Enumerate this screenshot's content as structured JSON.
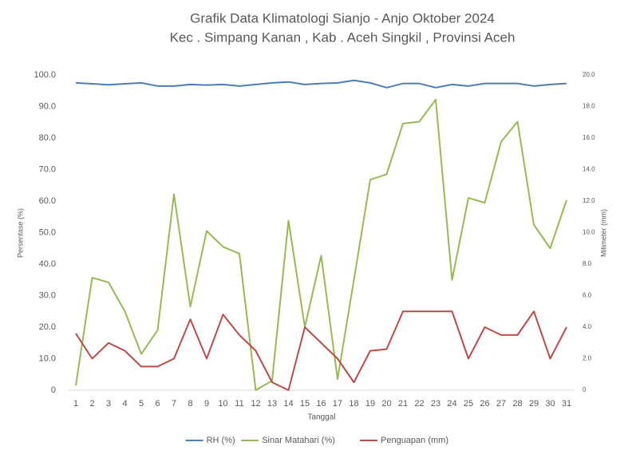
{
  "chart_data": {
    "type": "line",
    "title": "Grafik Data Klimatologi Sianjo - Anjo Oktober 2024",
    "subtitle": "Kec . Simpang Kanan , Kab . Aceh Singkil , Provinsi  Aceh",
    "x_label": "Tanggal",
    "y_label": "Persentase (%)",
    "y2_label": "Milimeter (mm)",
    "categories": [
      "1",
      "2",
      "3",
      "4",
      "5",
      "6",
      "7",
      "8",
      "9",
      "10",
      "11",
      "12",
      "13",
      "14",
      "15",
      "16",
      "17",
      "18",
      "19",
      "20",
      "21",
      "22",
      "23",
      "24",
      "25",
      "26",
      "27",
      "28",
      "29",
      "30",
      "31"
    ],
    "ylim": [
      0,
      100
    ],
    "yticks": [
      0,
      {
        "value": 10,
        "label": "10.0"
      },
      {
        "value": 20,
        "label": "20.0"
      },
      {
        "value": 30,
        "label": "30.0"
      },
      {
        "value": 40,
        "label": "40.0"
      },
      {
        "value": 50,
        "label": "50.0"
      },
      {
        "value": 60,
        "label": "60.0"
      },
      {
        "value": 70,
        "label": "70.0"
      },
      {
        "value": 80,
        "label": "80.0"
      },
      {
        "value": 90,
        "label": "90.0"
      },
      {
        "value": 100,
        "label": "100.0"
      }
    ],
    "y2lim": [
      0,
      20
    ],
    "y2ticks": [
      0,
      {
        "value": 2,
        "label": "2.0"
      },
      {
        "value": 4,
        "label": "4.0"
      },
      {
        "value": 6,
        "label": "6.0"
      },
      {
        "value": 8,
        "label": "8.0"
      },
      {
        "value": 10,
        "label": "10.0"
      },
      {
        "value": 12,
        "label": "12.0"
      },
      {
        "value": 14,
        "label": "14.0"
      },
      {
        "value": 16,
        "label": "16.0"
      },
      {
        "value": 18,
        "label": "18.0"
      },
      {
        "value": 20,
        "label": "20.0"
      }
    ],
    "grid": false,
    "legend": "bottom",
    "series": [
      {
        "name": "RH (%)",
        "color": "#4a7ebb",
        "values": [
          97.5,
          97.2,
          96.9,
          97.2,
          97.5,
          96.5,
          96.5,
          97.0,
          96.8,
          97.0,
          96.5,
          97.0,
          97.5,
          97.8,
          97.0,
          97.3,
          97.5,
          98.3,
          97.5,
          96.0,
          97.3,
          97.3,
          96.0,
          97.0,
          96.5,
          97.3,
          97.3,
          97.3,
          96.5,
          97.0,
          97.3
        ]
      },
      {
        "name": "Sinar Matahari (%)",
        "color": "#98b954",
        "values": [
          1.5,
          35.7,
          34.2,
          25,
          11.5,
          19,
          62.2,
          26.5,
          50.5,
          45.5,
          43.3,
          0,
          3,
          53.8,
          20,
          42.7,
          3.5,
          35,
          66.8,
          68.5,
          84.6,
          85.2,
          92.2,
          35,
          61,
          59.5,
          78.8,
          85.2,
          52.5,
          45,
          60.3
        ]
      },
      {
        "name": "Penguapan (mm)",
        "color": "#be4b48",
        "axis": "y2",
        "values": [
          3.6,
          2.0,
          3.0,
          2.5,
          1.5,
          1.5,
          2.0,
          4.5,
          2.0,
          4.8,
          3.5,
          2.5,
          0.5,
          0,
          4.0,
          3.0,
          2.0,
          0.5,
          2.5,
          2.6,
          5.0,
          5.0,
          5.0,
          5.0,
          2.0,
          4.0,
          3.5,
          3.5,
          5.0,
          2.0,
          4.0
        ]
      }
    ]
  }
}
